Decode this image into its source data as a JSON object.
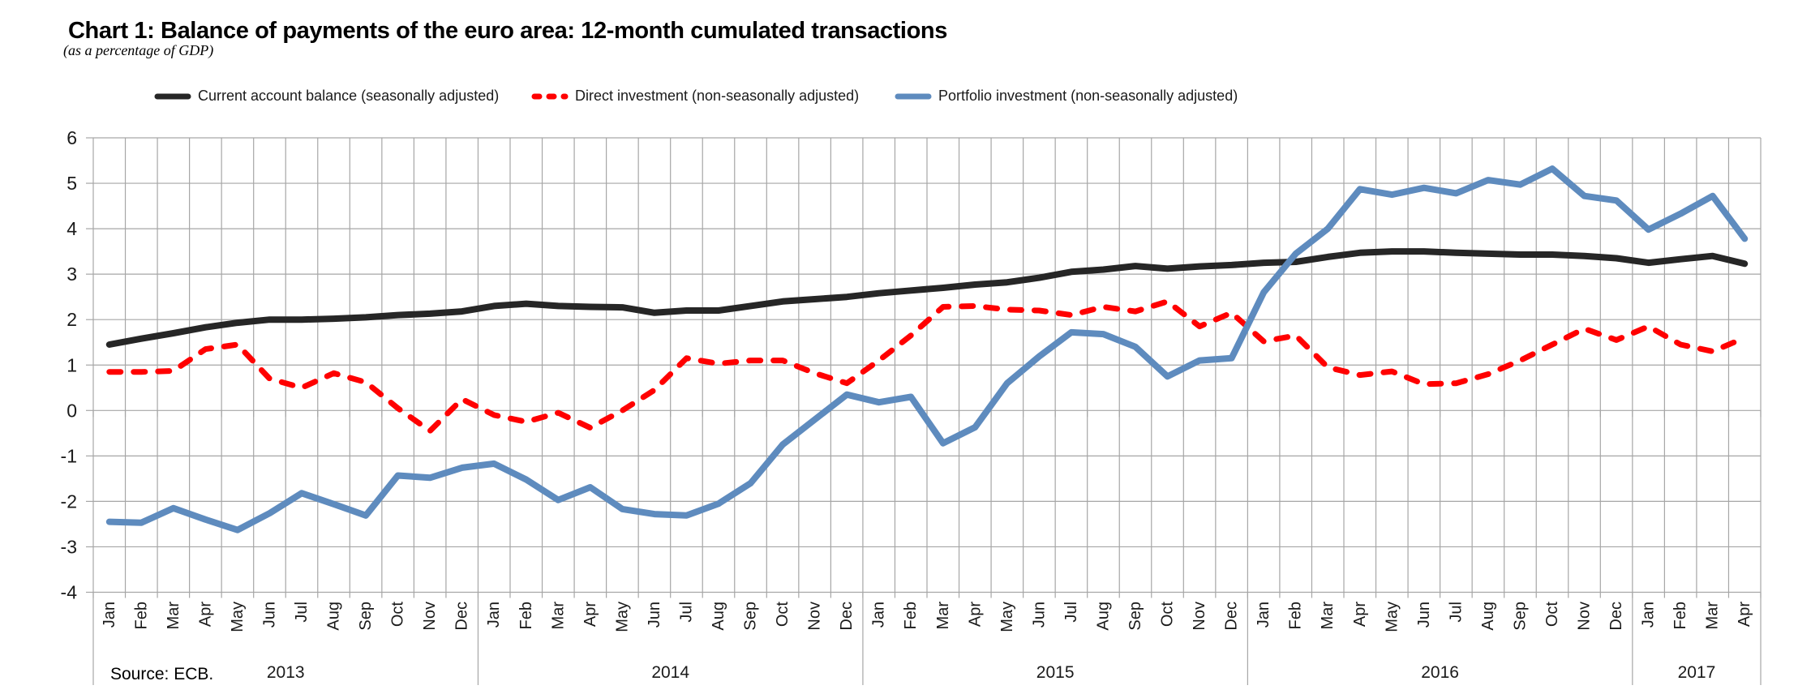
{
  "page": {
    "title": "Chart 1: Balance of payments of the euro area: 12-month cumulated transactions",
    "subtitle": "(as a percentage of GDP)",
    "source": "Source: ECB."
  },
  "legend": {
    "items": [
      {
        "label": "Current account balance (seasonally adjusted)",
        "color": "#262626",
        "dash": false
      },
      {
        "label": "Direct investment (non-seasonally adjusted)",
        "color": "#ff0000",
        "dash": true
      },
      {
        "label": "Portfolio investment (non-seasonally adjusted)",
        "color": "#5E8BBE",
        "dash": false
      }
    ]
  },
  "chart_data": {
    "type": "line",
    "title": "Chart 1: Balance of payments of the euro area: 12-month cumulated transactions",
    "subtitle": "(as a percentage of GDP)",
    "xlabel": "",
    "ylabel": "",
    "ylim": [
      -4,
      6
    ],
    "yticks": [
      6,
      5,
      4,
      3,
      2,
      1,
      0,
      -1,
      -2,
      -3,
      -4
    ],
    "grid": true,
    "legend_position": "top",
    "years": [
      {
        "label": "2013",
        "months": 12
      },
      {
        "label": "2014",
        "months": 12
      },
      {
        "label": "2015",
        "months": 12
      },
      {
        "label": "2016",
        "months": 12
      },
      {
        "label": "2017",
        "months": 4
      }
    ],
    "categories": [
      "Jan",
      "Feb",
      "Mar",
      "Apr",
      "May",
      "Jun",
      "Jul",
      "Aug",
      "Sep",
      "Oct",
      "Nov",
      "Dec",
      "Jan",
      "Feb",
      "Mar",
      "Apr",
      "May",
      "Jun",
      "Jul",
      "Aug",
      "Sep",
      "Oct",
      "Nov",
      "Dec",
      "Jan",
      "Feb",
      "Mar",
      "Apr",
      "May",
      "Jun",
      "Jul",
      "Aug",
      "Sep",
      "Oct",
      "Nov",
      "Dec",
      "Jan",
      "Feb",
      "Mar",
      "Apr",
      "May",
      "Jun",
      "Jul",
      "Aug",
      "Sep",
      "Oct",
      "Nov",
      "Dec",
      "Jan",
      "Feb",
      "Mar",
      "Apr"
    ],
    "series": [
      {
        "name": "Current account balance (seasonally adjusted)",
        "color": "#262626",
        "dash": false,
        "width": 8,
        "values": [
          1.45,
          1.58,
          1.7,
          1.83,
          1.93,
          2.0,
          2.0,
          2.02,
          2.05,
          2.1,
          2.13,
          2.18,
          2.3,
          2.35,
          2.3,
          2.28,
          2.27,
          2.15,
          2.2,
          2.2,
          2.3,
          2.4,
          2.45,
          2.5,
          2.58,
          2.64,
          2.7,
          2.77,
          2.82,
          2.92,
          3.05,
          3.1,
          3.18,
          3.12,
          3.17,
          3.2,
          3.25,
          3.27,
          3.38,
          3.47,
          3.5,
          3.5,
          3.47,
          3.45,
          3.43,
          3.43,
          3.4,
          3.35,
          3.25,
          3.33,
          3.4,
          3.23
        ]
      },
      {
        "name": "Direct investment (non-seasonally adjusted)",
        "color": "#ff0000",
        "dash": true,
        "width": 7,
        "values": [
          0.85,
          0.85,
          0.87,
          1.35,
          1.45,
          0.7,
          0.5,
          0.82,
          0.62,
          0.05,
          -0.45,
          0.25,
          -0.1,
          -0.25,
          -0.05,
          -0.38,
          0.0,
          0.45,
          1.15,
          1.03,
          1.1,
          1.1,
          0.82,
          0.6,
          1.1,
          1.65,
          2.28,
          2.3,
          2.22,
          2.2,
          2.1,
          2.28,
          2.18,
          2.4,
          1.85,
          2.15,
          1.52,
          1.65,
          0.95,
          0.78,
          0.86,
          0.58,
          0.6,
          0.8,
          1.1,
          1.45,
          1.8,
          1.55,
          1.85,
          1.45,
          1.3,
          1.6
        ]
      },
      {
        "name": "Portfolio investment (non-seasonally adjusted)",
        "color": "#5E8BBE",
        "dash": false,
        "width": 8,
        "values": [
          -2.45,
          -2.47,
          -2.15,
          -2.4,
          -2.63,
          -2.26,
          -1.82,
          -2.06,
          -2.31,
          -1.43,
          -1.48,
          -1.26,
          -1.17,
          -1.52,
          -1.97,
          -1.69,
          -2.17,
          -2.28,
          -2.31,
          -2.05,
          -1.6,
          -0.75,
          -0.2,
          0.35,
          0.18,
          0.3,
          -0.72,
          -0.37,
          0.6,
          1.19,
          1.72,
          1.68,
          1.4,
          0.75,
          1.1,
          1.15,
          2.6,
          3.45,
          4.0,
          4.87,
          4.75,
          4.9,
          4.78,
          5.07,
          4.97,
          5.32,
          4.72,
          4.62,
          3.98,
          4.33,
          4.72,
          3.78
        ]
      }
    ],
    "colors": {
      "grid": "#a6a6a6",
      "text": "#1a1a1a"
    }
  }
}
